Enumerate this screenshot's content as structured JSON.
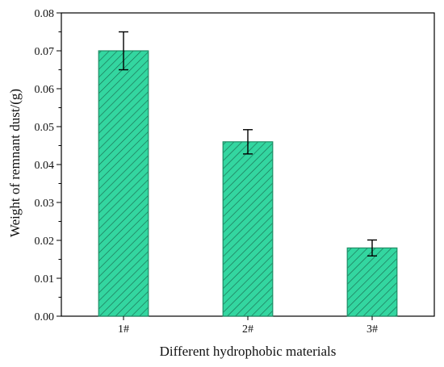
{
  "chart_data": {
    "type": "bar",
    "title": "",
    "xlabel": "Different hydrophobic materials",
    "ylabel": "Weight of remnant dust/(g)",
    "categories": [
      "1#",
      "2#",
      "3#"
    ],
    "values": [
      0.07,
      0.046,
      0.018
    ],
    "errors": [
      0.005,
      0.0032,
      0.0021
    ],
    "ylim": [
      0,
      0.08
    ],
    "yticks": [
      "0.00",
      "0.01",
      "0.02",
      "0.03",
      "0.04",
      "0.05",
      "0.06",
      "0.07",
      "0.08"
    ],
    "grid": false,
    "legend": "none",
    "bar_fill": "#33d6a0",
    "bar_hatch": "#1a6b50",
    "bar_edge": "#1f8e66",
    "axis_color": "#000000"
  }
}
